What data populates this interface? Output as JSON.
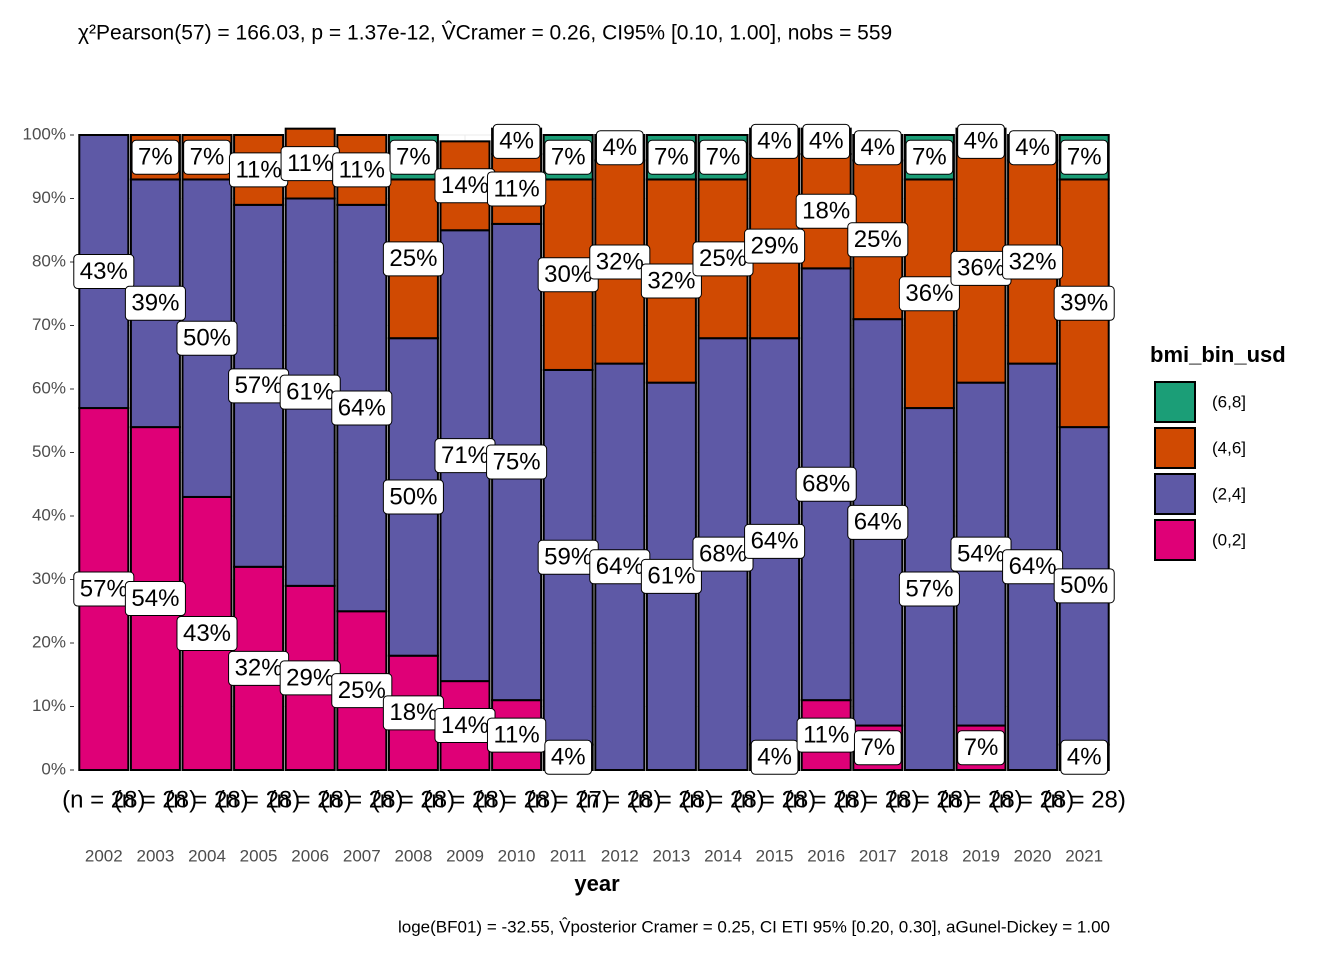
{
  "chart_data": {
    "type": "stacked_percent_bar",
    "subtitle": "χ²Pearson(57) = 166.03, p = 1.37e-12, V̂Cramer = 0.26, CI95% [0.10, 1.00], nobs = 559",
    "caption": "loge(BF01) = -32.55, V̂posterior Cramer = 0.25, CI ETI 95% [0.20, 0.30], aGunel-Dickey = 1.00",
    "x_label": "year",
    "legend_title": "bmi_bin_usd",
    "legend_position": "right",
    "grid": true,
    "categories": [
      "2002",
      "2003",
      "2004",
      "2005",
      "2006",
      "2007",
      "2008",
      "2009",
      "2010",
      "2011",
      "2012",
      "2013",
      "2014",
      "2015",
      "2016",
      "2017",
      "2018",
      "2019",
      "2020",
      "2021"
    ],
    "count_labels": [
      "(n = 28)",
      "(n = 28)",
      "(n = 28)",
      "(n = 28)",
      "(n = 28)",
      "(n = 28)",
      "(n = 28)",
      "(n = 28)",
      "(n = 28)",
      "(n = 27)",
      "(n = 28)",
      "(n = 28)",
      "(n = 28)",
      "(n = 28)",
      "(n = 28)",
      "(n = 28)",
      "(n = 28)",
      "(n = 28)",
      "(n = 28)",
      "(n = 28)"
    ],
    "ylim": [
      0,
      100
    ],
    "yticks": [
      {
        "value": 0,
        "label": "0%"
      },
      {
        "value": 10,
        "label": "10%"
      },
      {
        "value": 20,
        "label": "20%"
      },
      {
        "value": 30,
        "label": "30%"
      },
      {
        "value": 40,
        "label": "40%"
      },
      {
        "value": 50,
        "label": "50%"
      },
      {
        "value": 60,
        "label": "60%"
      },
      {
        "value": 70,
        "label": "70%"
      },
      {
        "value": 80,
        "label": "80%"
      },
      {
        "value": 90,
        "label": "90%"
      },
      {
        "value": 100,
        "label": "100%"
      }
    ],
    "series": [
      {
        "name": "(0,2]",
        "color": "#df0077",
        "values": [
          57,
          54,
          43,
          32,
          29,
          25,
          18,
          14,
          11,
          4,
          null,
          null,
          null,
          4,
          11,
          7,
          null,
          7,
          null,
          4
        ],
        "value_labels": [
          "57%",
          "54%",
          "43%",
          "32%",
          "29%",
          "25%",
          "18%",
          "14%",
          "11%",
          "4%",
          null,
          null,
          null,
          "4%",
          "11%",
          "7%",
          null,
          "7%",
          null,
          "4%"
        ]
      },
      {
        "name": "(2,4]",
        "color": "#5e59a6",
        "values": [
          43,
          39,
          50,
          57,
          61,
          64,
          50,
          71,
          75,
          59,
          64,
          61,
          68,
          64,
          68,
          64,
          57,
          54,
          64,
          50
        ],
        "value_labels": [
          "43%",
          "39%",
          "50%",
          "57%",
          "61%",
          "64%",
          "50%",
          "71%",
          "75%",
          "59%",
          "64%",
          "61%",
          "68%",
          "64%",
          "68%",
          "64%",
          "57%",
          "54%",
          "64%",
          "50%"
        ]
      },
      {
        "name": "(4,6]",
        "color": "#d04a02",
        "values": [
          null,
          7,
          7,
          11,
          11,
          11,
          25,
          14,
          11,
          30,
          32,
          32,
          25,
          29,
          18,
          25,
          36,
          36,
          32,
          39
        ],
        "value_labels": [
          null,
          "7%",
          "7%",
          "11%",
          "11%",
          "11%",
          "25%",
          "14%",
          "11%",
          "30%",
          "32%",
          "32%",
          "25%",
          "29%",
          "18%",
          "25%",
          "36%",
          "36%",
          "32%",
          "39%"
        ]
      },
      {
        "name": "(6,8]",
        "color": "#1b9e77",
        "values": [
          null,
          null,
          null,
          null,
          null,
          null,
          7,
          null,
          4,
          7,
          4,
          7,
          7,
          4,
          4,
          4,
          7,
          4,
          4,
          7
        ],
        "value_labels": [
          null,
          null,
          null,
          null,
          null,
          null,
          "7%",
          null,
          "4%",
          "7%",
          "4%",
          "7%",
          "7%",
          "4%",
          "4%",
          "4%",
          "7%",
          "4%",
          "4%",
          "7%"
        ]
      }
    ]
  }
}
